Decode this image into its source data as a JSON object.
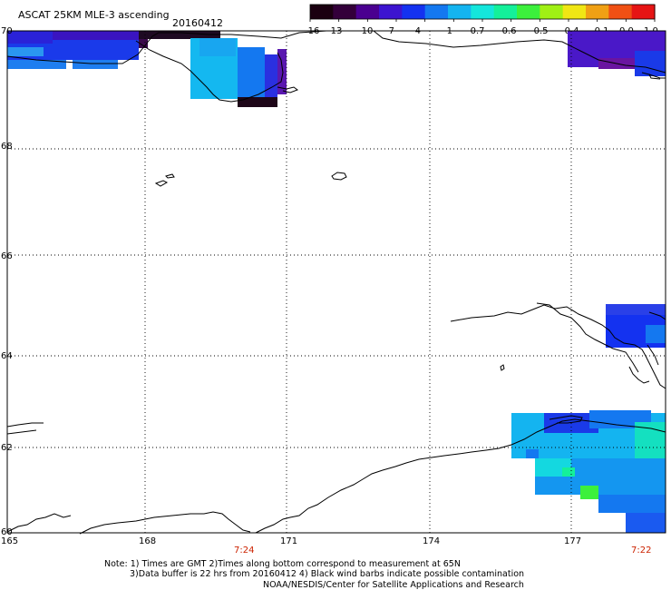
{
  "header": {
    "title": "ASCAT 25KM MLE-3 ascending",
    "date": "20160412"
  },
  "colorbar": {
    "labels": [
      "-16",
      "-13",
      "-10",
      "-7",
      "-4",
      "-1",
      "-0.7",
      "-0.6",
      "-0.5",
      "-0.4",
      "-0.1",
      "0.0",
      "1.0"
    ],
    "colors": [
      "#1a0010",
      "#33003a",
      "#4a0090",
      "#3c14d0",
      "#1432f0",
      "#1478f0",
      "#14b4f0",
      "#14e6dc",
      "#14f09a",
      "#3cf03c",
      "#a0f014",
      "#f0e614",
      "#f0a014",
      "#f05014",
      "#e61414"
    ]
  },
  "lat_labels": [
    "70",
    "68",
    "66",
    "64",
    "62",
    "60"
  ],
  "lon_labels": [
    "165",
    "168",
    "171",
    "174",
    "177"
  ],
  "times": [
    "7:24",
    "7:22"
  ],
  "notes": {
    "line1": "Note: 1) Times are GMT 2)Times along bottom correspond to measurement at 65N",
    "line2": "3)Data buffer is 22 hrs from 20160412 4) Black wind barbs indicate possible contamination",
    "line3": "NOAA/NESDIS/Center for Satellite Applications and Research"
  }
}
